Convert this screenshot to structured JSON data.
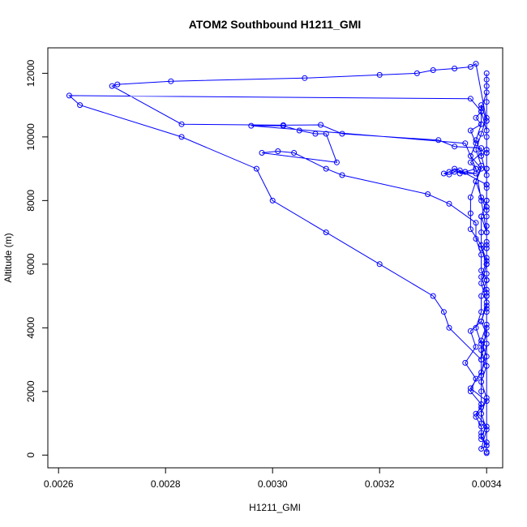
{
  "chart_data": {
    "type": "line",
    "title": "ATOM2 Southbound H1211_GMI",
    "xlabel": "H1211_GMI",
    "ylabel": "Altitude (m)",
    "xlim": [
      0.00258,
      0.00343
    ],
    "ylim": [
      -400,
      12800
    ],
    "xticks": [
      0.0026,
      0.0028,
      0.003,
      0.0032,
      0.0034
    ],
    "xtick_labels": [
      "0.0026",
      "0.0028",
      "0.0030",
      "0.0032",
      "0.0034"
    ],
    "yticks": [
      0,
      2000,
      4000,
      6000,
      8000,
      10000,
      12000
    ],
    "ytick_labels": [
      "0",
      "2000",
      "4000",
      "6000",
      "8000",
      "10000",
      "12000"
    ],
    "grid": false,
    "series_color": "#0000ff",
    "series": [
      {
        "name": "",
        "x": [
          0.0034,
          0.0034,
          0.00339,
          0.0034,
          0.00338,
          0.0034,
          0.00337,
          0.00339,
          0.0034,
          0.00339,
          0.0034,
          0.0034,
          0.0034,
          0.00339,
          0.0034,
          0.00339,
          0.00337,
          0.00337,
          0.00337,
          0.00338,
          0.00339,
          0.00338,
          0.00339,
          0.0034,
          0.0034,
          0.0034,
          0.0034,
          0.0034,
          0.0034,
          0.00339,
          0.00339,
          0.00338,
          0.00339,
          0.00337,
          0.00338,
          0.00336,
          0.00338,
          0.00335,
          0.00336,
          0.00334,
          0.00333,
          0.00332,
          0.00333,
          0.00334,
          0.00335,
          0.0034,
          0.0034,
          0.00339,
          0.00339,
          0.00339,
          0.0034,
          0.0034,
          0.00339,
          0.00339,
          0.00338,
          0.00339,
          0.00339,
          0.00333,
          0.00332,
          0.0033,
          0.0032,
          0.0031,
          0.003,
          0.00297,
          0.00283,
          0.00264,
          0.00262,
          0.00337,
          0.00339,
          0.0034,
          0.0034,
          0.0034,
          0.0034,
          0.0034,
          0.0034,
          0.0034,
          0.0034,
          0.00339,
          0.0034,
          0.00339,
          0.00337,
          0.00338,
          0.00336,
          0.00338,
          0.00337,
          0.00339,
          0.00338,
          0.00339,
          0.00339,
          0.00339,
          0.0034,
          0.0034,
          0.00339,
          0.0034,
          0.00339,
          0.0034,
          0.00339,
          0.0034,
          0.00339,
          0.0034,
          0.00339,
          0.0034,
          0.0034,
          0.0034,
          0.0034,
          0.0034,
          0.0034,
          0.0034,
          0.00339,
          0.00338,
          0.00339,
          0.00337,
          0.00338,
          0.00337,
          0.00339,
          0.00338,
          0.00339,
          0.00339,
          0.0034,
          0.0034,
          0.0034,
          0.0034,
          0.0034,
          0.0034,
          0.00339,
          0.0034,
          0.0034,
          0.0034,
          0.0034,
          0.00339,
          0.00339,
          0.00338,
          0.00338,
          0.00333,
          0.00329,
          0.00313,
          0.0031,
          0.00304,
          0.00301,
          0.00298,
          0.00312,
          0.0031,
          0.00308,
          0.00305,
          0.00302,
          0.00296,
          0.00336,
          0.00338,
          0.00339,
          0.0034,
          0.0034,
          0.0034,
          0.0034,
          0.00339,
          0.00339,
          0.00339,
          0.00339,
          0.00339,
          0.0034,
          0.0034,
          0.0034,
          0.0034,
          0.0034,
          0.0034,
          0.0034,
          0.0034,
          0.00338,
          0.00337,
          0.00334,
          0.0033,
          0.00327,
          0.0032,
          0.00306,
          0.00281,
          0.00271,
          0.0027,
          0.00283,
          0.00302,
          0.00309,
          0.00313,
          0.00331,
          0.00334,
          0.00339,
          0.00339,
          0.0034,
          0.0034,
          0.0034,
          0.0034
        ],
        "y": [
          60,
          300,
          600,
          900,
          1300,
          1700,
          2100,
          2600,
          3100,
          3600,
          4100,
          4600,
          5100,
          5600,
          6100,
          6600,
          7100,
          7600,
          8100,
          8600,
          9100,
          9600,
          10100,
          10600,
          11100,
          11600,
          12000,
          11800,
          11400,
          10900,
          10400,
          9900,
          9500,
          9200,
          9000,
          8900,
          8850,
          8850,
          8900,
          8900,
          8820,
          8850,
          8900,
          9000,
          8950,
          8500,
          8000,
          7500,
          7000,
          6500,
          6000,
          5500,
          5000,
          4500,
          4000,
          3500,
          3000,
          4000,
          4500,
          5000,
          6000,
          7000,
          8000,
          9000,
          10000,
          11000,
          11300,
          11200,
          10800,
          10200,
          9600,
          9000,
          8400,
          7800,
          7200,
          6600,
          6000,
          5400,
          4800,
          4200,
          3900,
          3400,
          2900,
          2400,
          2000,
          1600,
          1200,
          900,
          700,
          500,
          400,
          300,
          200,
          800,
          1300,
          1800,
          2300,
          2800,
          3300,
          3800,
          4200,
          4700,
          5200,
          5700,
          6200,
          6700,
          7200,
          7700,
          8100,
          8600,
          9000,
          9400,
          9800,
          10200,
          10400,
          10600,
          10800,
          11000,
          10500,
          10000,
          9500,
          9000,
          8500,
          8000,
          7500,
          7000,
          6500,
          6000,
          5500,
          5800,
          6300,
          6800,
          7300,
          7900,
          8200,
          8800,
          9000,
          9500,
          9550,
          9500,
          9200,
          10100,
          10100,
          10200,
          10350,
          10350,
          9800,
          9000,
          8000,
          7000,
          6000,
          5000,
          4000,
          3000,
          2000,
          1000,
          1500,
          2500,
          3500,
          4500,
          5500,
          6500,
          7500,
          8500,
          9500,
          10500,
          12300,
          12200,
          12150,
          12100,
          12000,
          11950,
          11850,
          11750,
          11650,
          11600,
          10400,
          10370,
          10380,
          10100,
          9900,
          9700,
          9650,
          9400,
          8800,
          7800,
          5000,
          100
        ]
      }
    ]
  }
}
